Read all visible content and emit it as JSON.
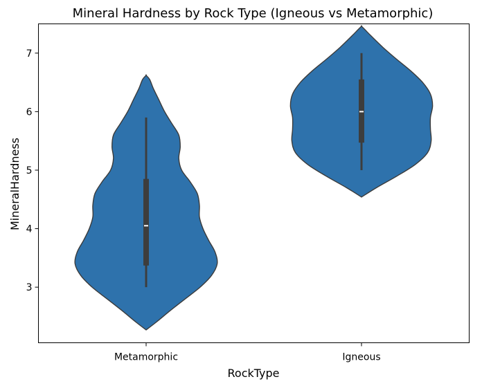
{
  "chart_data": {
    "type": "violin",
    "title": "Mineral Hardness by Rock Type (Igneous vs Metamorphic)",
    "xlabel": "RockType",
    "ylabel": "MineralHardness",
    "ylim": [
      2.05,
      7.5
    ],
    "yticks": [
      3,
      4,
      5,
      6,
      7
    ],
    "grid": false,
    "categories": [
      "Metamorphic",
      "Igneous"
    ],
    "violins": [
      {
        "category": "Metamorphic",
        "color": "#2e72ac",
        "min": 3.0,
        "q1": 3.37,
        "median": 4.05,
        "q3": 4.85,
        "max": 5.9,
        "density": [
          [
            2.27,
            0.0
          ],
          [
            2.4,
            0.14
          ],
          [
            2.6,
            0.34
          ],
          [
            2.8,
            0.55
          ],
          [
            3.0,
            0.76
          ],
          [
            3.2,
            0.92
          ],
          [
            3.4,
            1.0
          ],
          [
            3.6,
            0.97
          ],
          [
            3.8,
            0.88
          ],
          [
            4.0,
            0.8
          ],
          [
            4.2,
            0.75
          ],
          [
            4.4,
            0.75
          ],
          [
            4.6,
            0.72
          ],
          [
            4.8,
            0.62
          ],
          [
            5.0,
            0.5
          ],
          [
            5.2,
            0.46
          ],
          [
            5.4,
            0.48
          ],
          [
            5.6,
            0.46
          ],
          [
            5.8,
            0.36
          ],
          [
            6.0,
            0.26
          ],
          [
            6.2,
            0.18
          ],
          [
            6.4,
            0.1
          ],
          [
            6.55,
            0.05
          ],
          [
            6.62,
            0.0
          ]
        ]
      },
      {
        "category": "Igneous",
        "color": "#2e72ac",
        "min": 5.0,
        "q1": 5.47,
        "median": 6.0,
        "q3": 6.55,
        "max": 7.0,
        "density": [
          [
            4.54,
            0.0
          ],
          [
            4.7,
            0.21
          ],
          [
            4.9,
            0.5
          ],
          [
            5.1,
            0.76
          ],
          [
            5.3,
            0.93
          ],
          [
            5.5,
            0.98
          ],
          [
            5.7,
            0.97
          ],
          [
            5.9,
            0.97
          ],
          [
            6.1,
            1.0
          ],
          [
            6.3,
            0.97
          ],
          [
            6.5,
            0.86
          ],
          [
            6.7,
            0.69
          ],
          [
            6.9,
            0.49
          ],
          [
            7.1,
            0.3
          ],
          [
            7.3,
            0.13
          ],
          [
            7.4,
            0.05
          ],
          [
            7.46,
            0.0
          ]
        ]
      }
    ]
  }
}
